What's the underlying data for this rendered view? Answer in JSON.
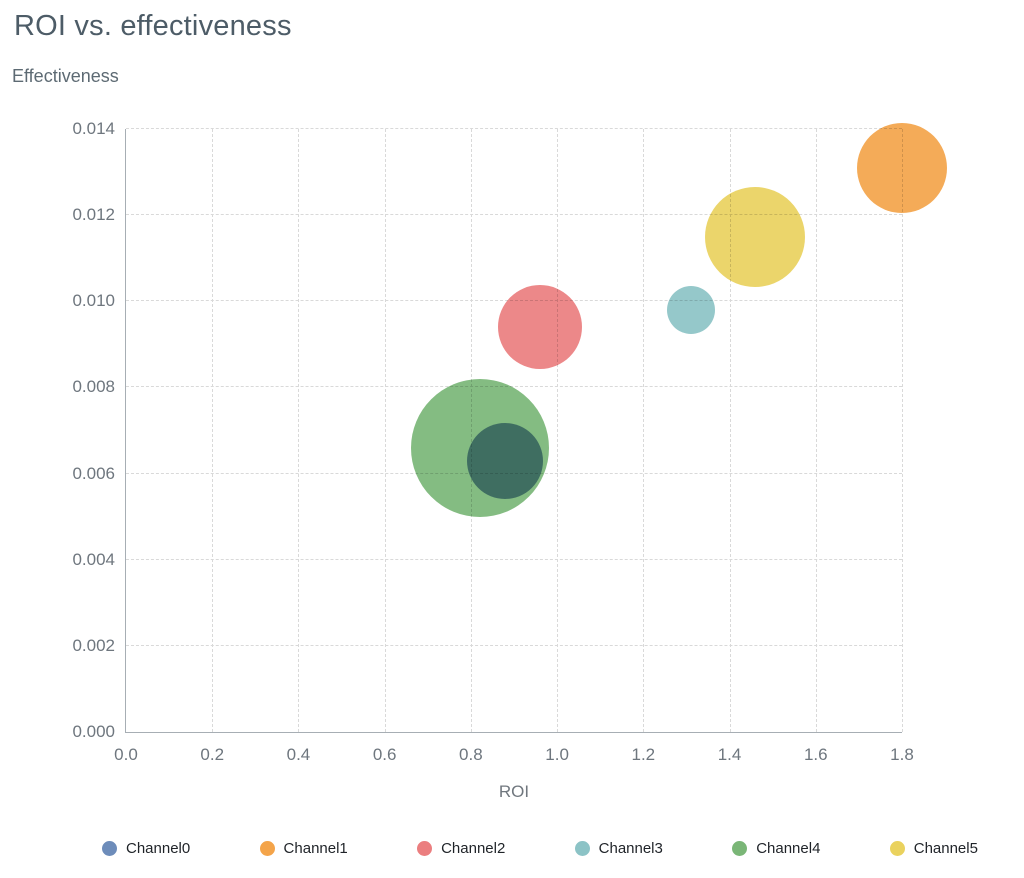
{
  "title": "ROI vs. effectiveness",
  "axes": {
    "y_title": "Effectiveness",
    "x_title": "ROI",
    "x_ticks": [
      "0.0",
      "0.2",
      "0.4",
      "0.6",
      "0.8",
      "1.0",
      "1.2",
      "1.4",
      "1.6",
      "1.8"
    ],
    "y_ticks": [
      "0.000",
      "0.002",
      "0.004",
      "0.006",
      "0.008",
      "0.010",
      "0.012",
      "0.014"
    ]
  },
  "chart_data": {
    "type": "scatter",
    "subtype": "bubble",
    "title": "ROI vs. effectiveness",
    "xlabel": "ROI",
    "ylabel": "Effectiveness",
    "x_range": [
      0,
      1.8
    ],
    "y_range": [
      0,
      0.014
    ],
    "grid": true,
    "legend_position": "bottom",
    "series": [
      {
        "name": "Channel0",
        "color": "#6d8cba",
        "roi": 0.88,
        "effectiveness": 0.0063,
        "radius_px": 38
      },
      {
        "name": "Channel1",
        "color": "#f4a44a",
        "roi": 1.8,
        "effectiveness": 0.0131,
        "radius_px": 45
      },
      {
        "name": "Channel2",
        "color": "#eb7e7f",
        "roi": 0.96,
        "effectiveness": 0.0094,
        "radius_px": 42
      },
      {
        "name": "Channel3",
        "color": "#8cc3c6",
        "roi": 1.31,
        "effectiveness": 0.0098,
        "radius_px": 24
      },
      {
        "name": "Channel4",
        "color": "#7ab677",
        "roi": 0.82,
        "effectiveness": 0.0066,
        "radius_px": 69
      },
      {
        "name": "Channel5",
        "color": "#ead25e",
        "roi": 1.46,
        "effectiveness": 0.0115,
        "radius_px": 50
      }
    ]
  }
}
